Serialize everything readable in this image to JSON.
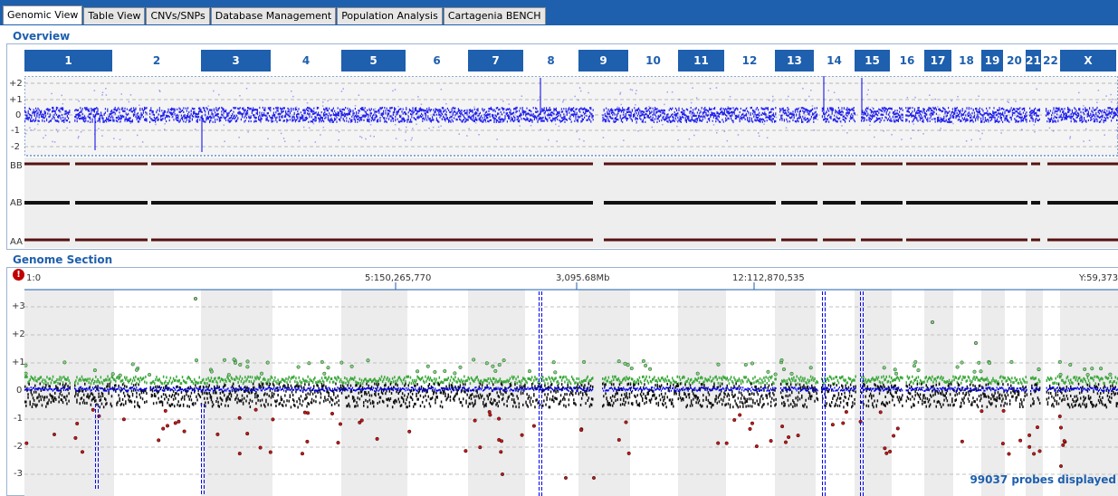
{
  "tabs": [
    {
      "label": "Genomic View",
      "active": true
    },
    {
      "label": "Table View"
    },
    {
      "label": "CNVs/SNPs"
    },
    {
      "label": "Database Management"
    },
    {
      "label": "Population Analysis"
    },
    {
      "label": "Cartagenia BENCH"
    }
  ],
  "overview": {
    "title": "Overview",
    "chromosomes": [
      "1",
      "2",
      "3",
      "4",
      "5",
      "6",
      "7",
      "8",
      "9",
      "10",
      "11",
      "12",
      "13",
      "14",
      "15",
      "16",
      "17",
      "18",
      "19",
      "20",
      "21",
      "22",
      "X"
    ],
    "log_ratio_ticks": [
      "+2",
      "+1",
      "0",
      "-1",
      "-2"
    ],
    "baf_labels": [
      "BB",
      "AB",
      "AA"
    ]
  },
  "section": {
    "title": "Genome Section",
    "warning_icon": "!",
    "axis_labels": [
      "1:0",
      "5:150,265,770",
      "3,095.68Mb",
      "12:112,870,535",
      "Y:59,373"
    ],
    "y_ticks": [
      "+3",
      "+2",
      "+1",
      "0",
      "-1",
      "-2",
      "-3"
    ],
    "status": "99037 probes displayed"
  },
  "colors": {
    "accent": "#1e5fae",
    "probe_blue": "#0000ee",
    "probe_green": "#3aa83a",
    "probe_red": "#c01818",
    "band_grey": "#ececec"
  }
}
